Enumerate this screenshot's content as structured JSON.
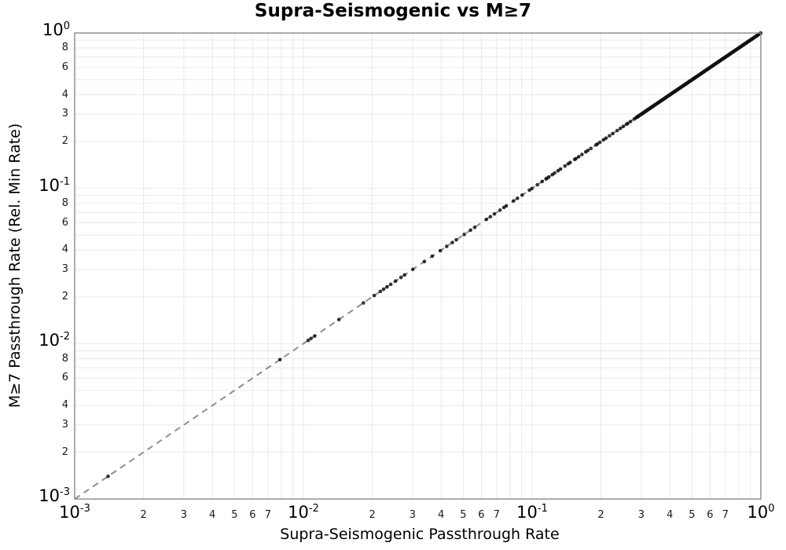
{
  "chart_data": {
    "type": "scatter",
    "title": "Supra-Seismogenic vs M≥7",
    "xlabel": "Supra-Seismogenic Passthrough Rate",
    "ylabel": "M≥7 Passthrough Rate (Rel. Min Rate)",
    "x_scale": "log",
    "y_scale": "log",
    "xlim": [
      0.001,
      1
    ],
    "ylim": [
      0.001,
      1
    ],
    "grid": true,
    "legend": false,
    "log_base_label": "10",
    "x_major_exponents": [
      "-3",
      "-2",
      "-1",
      "0"
    ],
    "y_major_exponents": [
      "0",
      "-1",
      "-2",
      "-3"
    ],
    "x_minor_labeled_digits": [
      2,
      3,
      4,
      5,
      6,
      7
    ],
    "y_minor_labeled_digits": [
      8,
      6,
      4,
      3,
      2
    ],
    "grid_minor_digits": [
      2,
      3,
      4,
      5,
      6,
      7,
      8,
      9
    ],
    "identity_line": {
      "relation": "y = x",
      "style": "dashed",
      "color": "#8f8f8f"
    },
    "marker": {
      "shape": "circle",
      "color": "#121212",
      "opacity": 0.85,
      "radius_px": 2.3
    },
    "note": "All points lie on the y = x identity line (y values equal x values).",
    "sparse_points_x": [
      0.0014,
      0.0079,
      0.0105,
      0.0108,
      0.0112,
      0.0143,
      0.0183,
      0.0204,
      0.0217,
      0.0224,
      0.0232,
      0.0241,
      0.0253,
      0.0267,
      0.0277,
      0.0301,
      0.0338,
      0.0366,
      0.0397,
      0.0423,
      0.0448,
      0.0466,
      0.0505,
      0.0538,
      0.0561,
      0.0631,
      0.0657,
      0.0684,
      0.0724,
      0.0753,
      0.0771,
      0.0829,
      0.0863,
      0.0905,
      0.0973,
      0.0997,
      0.1054,
      0.1106,
      0.1151
    ],
    "dense_bands": [
      {
        "x_min": 0.115,
        "x_max": 0.28,
        "count": 30
      },
      {
        "x_min": 0.285,
        "x_max": 1.0,
        "count": 240
      }
    ],
    "colors": {
      "grid": "#e9e9e9",
      "border": "#8a8a8a",
      "text": "#000000",
      "minor_tick_text": "#1a1a1a"
    }
  }
}
